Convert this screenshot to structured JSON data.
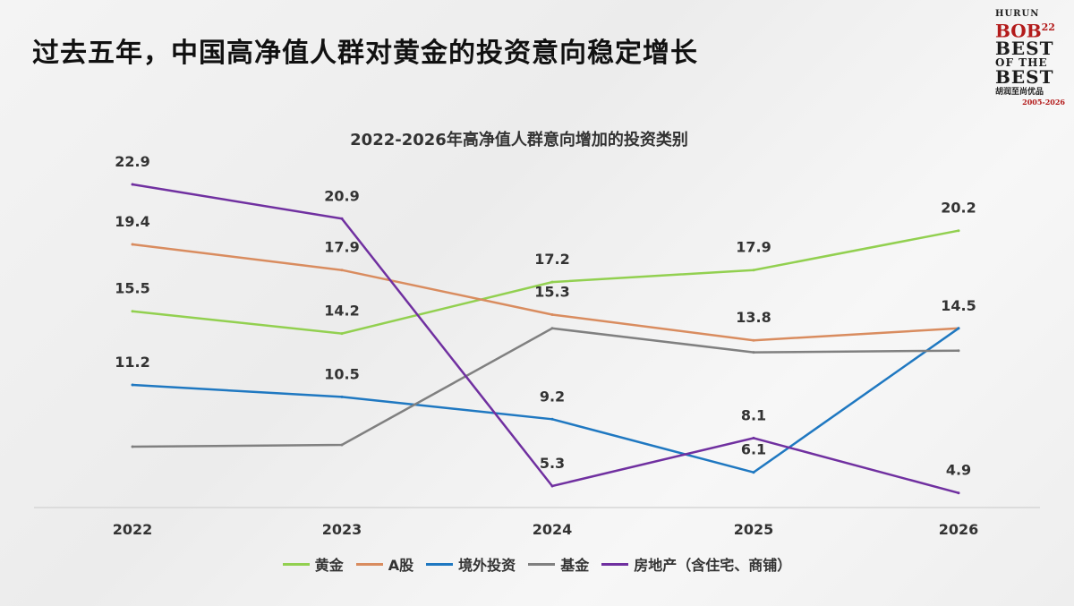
{
  "page": {
    "title": "过去五年，中国高净值人群对黄金的投资意向稳定增长"
  },
  "logo": {
    "line1": "HURUN",
    "line2": "BOB",
    "line2_sup": "22",
    "line3a": "BEST",
    "line3b": "OF THE",
    "line3c": "BEST",
    "line4": "胡润至尚优品",
    "line5": "2005-2026"
  },
  "chart_data": {
    "type": "line",
    "title": "2022-2026年高净值人群意向增加的投资类别",
    "categories": [
      "2022",
      "2023",
      "2024",
      "2025",
      "2026"
    ],
    "ylim": [
      3,
      25
    ],
    "grid": false,
    "legend_position": "bottom",
    "series": [
      {
        "name": "黄金",
        "color": "#92d050",
        "values": [
          15.5,
          14.2,
          17.2,
          17.9,
          20.2
        ],
        "labels": [
          "15.5",
          "14.2",
          "17.2",
          "17.9",
          "20.2"
        ]
      },
      {
        "name": "A股",
        "color": "#d98c5f",
        "values": [
          19.4,
          17.9,
          15.3,
          13.8,
          14.5
        ],
        "labels": [
          "19.4",
          "17.9",
          "15.3",
          "13.8",
          ""
        ]
      },
      {
        "name": "境外投资",
        "color": "#1f78c1",
        "values": [
          11.2,
          10.5,
          9.2,
          6.1,
          14.5
        ],
        "labels": [
          "11.2",
          "10.5",
          "9.2",
          "6.1",
          "14.5"
        ]
      },
      {
        "name": "基金",
        "color": "#808080",
        "values": [
          7.6,
          7.7,
          14.5,
          13.1,
          13.2
        ],
        "labels": [
          "",
          "",
          "",
          "",
          ""
        ]
      },
      {
        "name": "房地产（含住宅、商铺）",
        "color": "#7030a0",
        "values": [
          22.9,
          20.9,
          5.3,
          8.1,
          4.9
        ],
        "labels": [
          "22.9",
          "20.9",
          "5.3",
          "8.1",
          "4.9"
        ]
      }
    ]
  }
}
